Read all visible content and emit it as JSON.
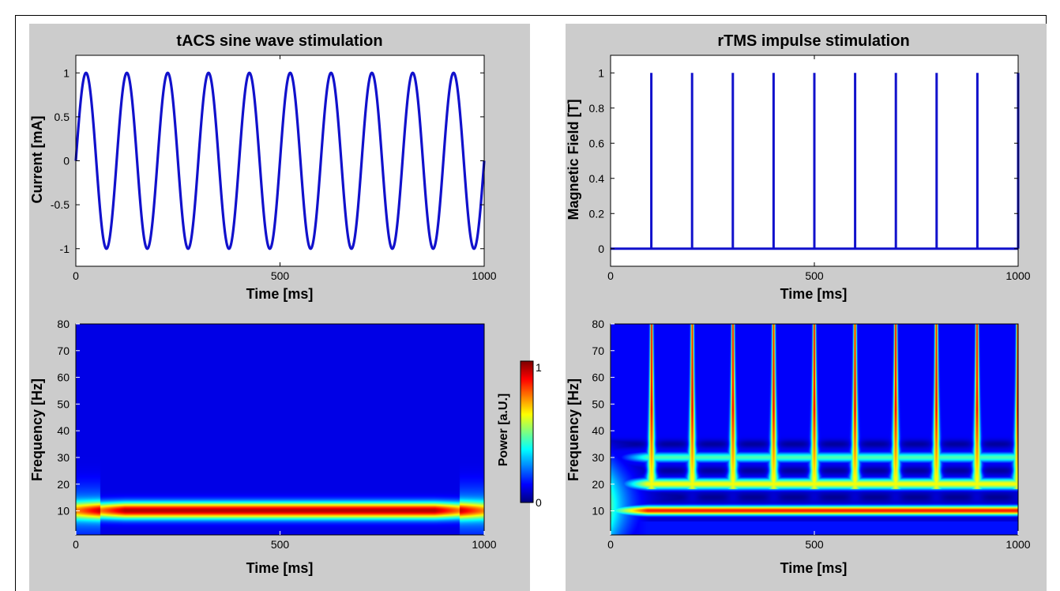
{
  "colors": {
    "panel_bg": "#cccccc",
    "line": "#1111cc",
    "colormap": "jet"
  },
  "chart_data": [
    {
      "type": "line",
      "title": "tACS sine wave stimulation",
      "xlabel": "Time [ms]",
      "ylabel": "Current [mA]",
      "xlim": [
        0,
        1000
      ],
      "ylim": [
        -1.2,
        1.2
      ],
      "xticks": [
        0,
        500,
        1000
      ],
      "yticks": [
        -1,
        -0.5,
        0,
        0.5,
        1
      ],
      "series": [
        {
          "function": "sin",
          "frequency_hz": 10,
          "amplitude": 1,
          "x_range": [
            0,
            1000
          ]
        }
      ]
    },
    {
      "type": "line",
      "title": "rTMS impulse stimulation",
      "xlabel": "Time [ms]",
      "ylabel": "Magnetic Field [T]",
      "xlim": [
        0,
        1000
      ],
      "ylim": [
        -0.1,
        1.1
      ],
      "xticks": [
        0,
        500,
        1000
      ],
      "yticks": [
        0,
        0.2,
        0.4,
        0.6,
        0.8,
        1
      ],
      "series": [
        {
          "baseline": 0,
          "pulse_amplitude": 1,
          "pulse_times": [
            100,
            200,
            300,
            400,
            500,
            600,
            700,
            800,
            900,
            1000
          ]
        }
      ]
    },
    {
      "type": "heatmap",
      "xlabel": "Time [ms]",
      "ylabel": "Frequency [Hz]",
      "xlim": [
        0,
        1000
      ],
      "ylim": [
        1,
        80
      ],
      "xticks": [
        0,
        500,
        1000
      ],
      "yticks": [
        10,
        20,
        30,
        40,
        50,
        60,
        70,
        80
      ],
      "peak_frequency_hz": 10,
      "peak_bandwidth_hz": 3,
      "max_power": 1
    },
    {
      "type": "heatmap",
      "xlabel": "Time [ms]",
      "ylabel": "Frequency [Hz]",
      "xlim": [
        0,
        1000
      ],
      "ylim": [
        1,
        80
      ],
      "xticks": [
        0,
        500,
        1000
      ],
      "yticks": [
        10,
        20,
        30,
        40,
        50,
        60,
        70,
        80
      ],
      "pulse_times": [
        100,
        200,
        300,
        400,
        500,
        600,
        700,
        800,
        900,
        1000
      ],
      "harmonic_bands_hz": [
        10,
        20,
        30
      ],
      "gap_bands_hz": [
        15,
        25,
        35
      ],
      "max_power": 1
    }
  ],
  "colorbar": {
    "label": "Power [a.U.]",
    "min_label": "0",
    "max_label": "1",
    "min": 0,
    "max": 1
  }
}
